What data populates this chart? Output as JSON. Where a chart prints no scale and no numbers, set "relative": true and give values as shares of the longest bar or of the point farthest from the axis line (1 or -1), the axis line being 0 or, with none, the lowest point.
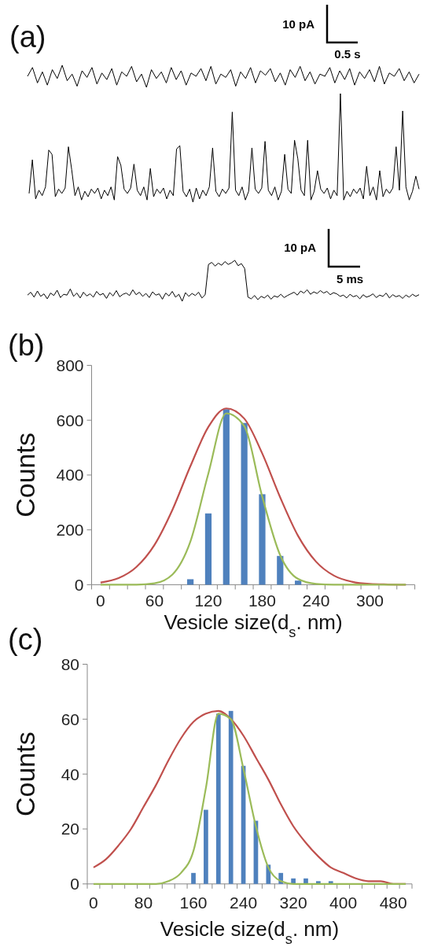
{
  "chart_data": [
    {
      "type": "line",
      "title": "(a)",
      "relative": true,
      "annotations": [
        "10 pA",
        "0.5 s"
      ],
      "color": "#000000",
      "categories": [
        null,
        null,
        null,
        null,
        null,
        null,
        null,
        null,
        null,
        null,
        null,
        null,
        null,
        null,
        null,
        null,
        null,
        null,
        null,
        null,
        null,
        null,
        null,
        null,
        null,
        null,
        null,
        null,
        null,
        null,
        null,
        null,
        null,
        null,
        null,
        null,
        null,
        null,
        null,
        null,
        null,
        null,
        null,
        null,
        null,
        null,
        null,
        null,
        null,
        null,
        null,
        null,
        null,
        null,
        null,
        null,
        null,
        null,
        null,
        null,
        null,
        null,
        null,
        null,
        null,
        null,
        null,
        null,
        null,
        null,
        null,
        null,
        null,
        null,
        null,
        null,
        null,
        null,
        null,
        null
      ],
      "values": [
        0.5,
        0.9,
        0.2,
        0.7,
        0.1,
        0.8,
        0.4,
        1,
        0.3,
        0.6,
        0.05,
        0.75,
        0.45,
        0.9,
        0.15,
        0.65,
        0.35,
        0.85,
        0.1,
        0.7,
        0.5,
        0.95,
        0.25,
        0.6,
        0,
        0.8,
        0.4,
        0.7,
        0.2,
        0.9,
        0.35,
        0.75,
        0.1,
        0.65,
        0.5,
        0.85,
        0.3,
        0.95,
        0.15,
        0.6,
        0.45,
        0.8,
        0.05,
        0.7,
        0.4,
        0.9,
        0.2,
        0.75,
        0.55,
        0.85,
        0.25,
        0.65,
        0.1,
        0.8,
        0.45,
        0.95,
        0.3,
        0.7,
        0.15,
        0.6,
        0.5,
        0.9,
        0.2,
        0.75,
        0.35,
        0.85,
        0.1,
        0.7,
        0.4,
        0.8,
        0.25,
        0.95,
        0.15,
        0.65,
        0.5,
        0.85,
        0.3,
        0.7,
        0.2,
        0.6
      ]
    },
    {
      "type": "line",
      "relative": true,
      "color": "#000000",
      "categories": [
        null,
        null,
        null,
        null,
        null,
        null,
        null,
        null,
        null,
        null,
        null,
        null,
        null,
        null,
        null,
        null,
        null,
        null,
        null,
        null,
        null,
        null,
        null,
        null,
        null,
        null,
        null,
        null,
        null,
        null,
        null,
        null,
        null,
        null,
        null,
        null,
        null,
        null,
        null,
        null,
        null,
        null,
        null,
        null,
        null,
        null,
        null,
        null,
        null,
        null,
        null,
        null,
        null,
        null,
        null,
        null,
        null,
        null,
        null,
        null,
        null,
        null,
        null,
        null,
        null,
        null,
        null,
        null,
        null,
        null,
        null,
        null,
        null,
        null,
        null,
        null,
        null,
        null,
        null,
        null,
        null,
        null,
        null,
        null,
        null,
        null,
        null,
        null,
        null,
        null,
        null,
        null,
        null,
        null,
        null,
        null,
        null,
        null,
        null,
        null,
        null,
        null,
        null,
        null,
        null,
        null,
        null,
        null,
        null,
        null,
        null,
        null,
        null,
        null,
        null,
        null,
        null,
        null,
        null,
        null
      ],
      "values": [
        0.08,
        0.39,
        0.03,
        0.11,
        0.06,
        0.14,
        0.48,
        0.44,
        0.05,
        0.12,
        0.08,
        0.13,
        0.51,
        0.3,
        0.06,
        0.14,
        0.02,
        0.1,
        0.05,
        0.12,
        0.08,
        0.13,
        0.03,
        0.11,
        0.06,
        0.14,
        0.02,
        0.42,
        0.34,
        0.12,
        0.08,
        0.13,
        0.35,
        0.11,
        0.06,
        0.14,
        0.02,
        0.31,
        0.05,
        0.12,
        0.08,
        0.13,
        0.03,
        0.11,
        0.06,
        0.49,
        0.52,
        0.1,
        0.05,
        0.12,
        0,
        0.13,
        0.03,
        0.11,
        0.06,
        0.14,
        0.5,
        0.1,
        0.05,
        0.12,
        0.08,
        0.13,
        0.83,
        0.11,
        0.06,
        0.14,
        0.02,
        0.1,
        0.5,
        0.12,
        0.08,
        0.13,
        0.56,
        0.11,
        0.06,
        0.14,
        0.02,
        0.1,
        0.44,
        0.12,
        0.08,
        0.57,
        0.4,
        0.11,
        0.06,
        0.57,
        0.02,
        0.1,
        0.29,
        0.12,
        0.08,
        0.13,
        0.03,
        0.11,
        0.06,
        1,
        0.02,
        0.1,
        0.05,
        0.12,
        0.08,
        0.13,
        0.03,
        0.33,
        0.06,
        0.14,
        0.02,
        0.29,
        0.05,
        0.12,
        0.08,
        0.13,
        0.51,
        0.11,
        0.84,
        0.14,
        0.02,
        0.1,
        0.24,
        0.12
      ]
    },
    {
      "type": "line",
      "relative": true,
      "annotations": [
        "10 pA",
        "5 ms"
      ],
      "color": "#000000",
      "categories": [
        null,
        null,
        null,
        null,
        null,
        null,
        null,
        null,
        null,
        null,
        null,
        null,
        null,
        null,
        null,
        null,
        null,
        null,
        null,
        null,
        null,
        null,
        null,
        null,
        null,
        null,
        null,
        null,
        null,
        null,
        null,
        null,
        null,
        null,
        null,
        null,
        null,
        null,
        null,
        null,
        null,
        null,
        null,
        null,
        null,
        null,
        null,
        null,
        null,
        null,
        null,
        null,
        null,
        null,
        null,
        null,
        null,
        null,
        null,
        null,
        null,
        null,
        null,
        null,
        null,
        null,
        null,
        null,
        null,
        null,
        null,
        null,
        null,
        null,
        null,
        null,
        null,
        null,
        null,
        null,
        null,
        null,
        null,
        null,
        null,
        null,
        null,
        null,
        null,
        null,
        null,
        null,
        null,
        null,
        null,
        null,
        null,
        null,
        null,
        null,
        null,
        null,
        null,
        null,
        null,
        null,
        null,
        null,
        null,
        null,
        null,
        null,
        null,
        null,
        null,
        null,
        null,
        null,
        null,
        null
      ],
      "values": [
        0.15,
        0.22,
        0.1,
        0.25,
        0.12,
        0.18,
        0.06,
        0.2,
        0.14,
        0.27,
        0.09,
        0.17,
        0.15,
        0.3,
        0.12,
        0.2,
        0.08,
        0.22,
        0.13,
        0.18,
        0.1,
        0.24,
        0.15,
        0.19,
        0.07,
        0.21,
        0.13,
        0.26,
        0.11,
        0.17,
        0.2,
        0.14,
        0.28,
        0.16,
        0.22,
        0.12,
        0.19,
        0.09,
        0.23,
        0.15,
        0.18,
        0.05,
        0.2,
        0.13,
        0.24,
        0.1,
        0.17,
        0,
        0.21,
        0.12,
        0.19,
        0.14,
        0.22,
        0.08,
        0.16,
        0.9,
        0.95,
        0.86,
        0.93,
        0.88,
        0.97,
        0.9,
        0.94,
        1,
        0.87,
        0.92,
        0.8,
        0.1,
        0.06,
        0.14,
        0.04,
        0.12,
        0.08,
        0.15,
        0.05,
        0.13,
        0.1,
        0.17,
        0.09,
        0.14,
        0.18,
        0.22,
        0.15,
        0.25,
        0.2,
        0.28,
        0.17,
        0.23,
        0.19,
        0.26,
        0.2,
        0.24,
        0.16,
        0.21,
        0.18,
        0.12,
        0.15,
        0.08,
        0.17,
        0.11,
        0.14,
        0.06,
        0.16,
        0.1,
        0.13,
        0.18,
        0.09,
        0.15,
        0.12,
        0.2,
        0.08,
        0.16,
        0.11,
        0.14,
        0.07,
        0.15,
        0.1,
        0.17,
        0.12,
        0.16
      ]
    },
    {
      "type": "bar",
      "title": "(b)",
      "xlabel": "Vesicle size(d$_{s}$. nm)",
      "ylabel": "Counts",
      "categories": [
        "0",
        null,
        null,
        "60",
        null,
        null,
        "120",
        null,
        null,
        "180",
        null,
        null,
        "240",
        null,
        null,
        "300",
        null,
        null
      ],
      "ylim": [
        0,
        800
      ],
      "yticks": [
        0,
        200,
        400,
        600,
        800
      ],
      "series": [
        {
          "type": "bar",
          "color": "#4f81bd",
          "values": [
            0,
            0,
            0,
            0,
            0,
            20,
            260,
            640,
            590,
            330,
            105,
            15,
            0,
            0,
            0,
            0,
            0,
            0
          ]
        },
        {
          "type": "line",
          "color": "#c0504d",
          "values": [
            8,
            24,
            65,
            145,
            273,
            432,
            575,
            643,
            606,
            479,
            319,
            178,
            84,
            33,
            11,
            3,
            1,
            0
          ]
        },
        {
          "type": "line",
          "color": "#9bbb59",
          "values": [
            0,
            0,
            0,
            5,
            37,
            157,
            405,
            625,
            579,
            322,
            108,
            21,
            3,
            0,
            0,
            0,
            0,
            0
          ]
        }
      ]
    },
    {
      "type": "bar",
      "title": "(c)",
      "xlabel": "Vesicle size(d$_{s}$. nm)",
      "ylabel": "Counts",
      "categories": [
        "0",
        null,
        null,
        null,
        "80",
        null,
        null,
        null,
        "160",
        null,
        null,
        null,
        "240",
        null,
        null,
        null,
        "320",
        null,
        null,
        null,
        "400",
        null,
        null,
        null,
        "480",
        null
      ],
      "ylim": [
        0,
        80
      ],
      "yticks": [
        0,
        20,
        40,
        60,
        80
      ],
      "series": [
        {
          "type": "bar",
          "color": "#4f81bd",
          "values": [
            0,
            0,
            0,
            0,
            0,
            0,
            0,
            0,
            4,
            27,
            62,
            63,
            43,
            23,
            7,
            4,
            2,
            2,
            1,
            1,
            0,
            0,
            0,
            0,
            0,
            0
          ]
        },
        {
          "type": "line",
          "color": "#c0504d",
          "values": [
            6,
            9,
            14,
            20,
            28,
            36,
            45,
            53,
            59,
            62,
            63,
            60,
            54,
            46,
            38,
            29,
            21,
            15,
            10,
            6,
            4,
            2,
            1,
            1,
            0,
            0
          ]
        },
        {
          "type": "line",
          "color": "#9bbb59",
          "values": [
            0,
            0,
            0,
            0,
            0,
            0,
            1,
            4,
            12,
            35,
            62,
            60,
            42,
            21,
            6,
            1,
            0,
            0,
            0,
            0,
            0,
            0,
            0,
            0,
            0,
            0
          ]
        }
      ]
    }
  ]
}
